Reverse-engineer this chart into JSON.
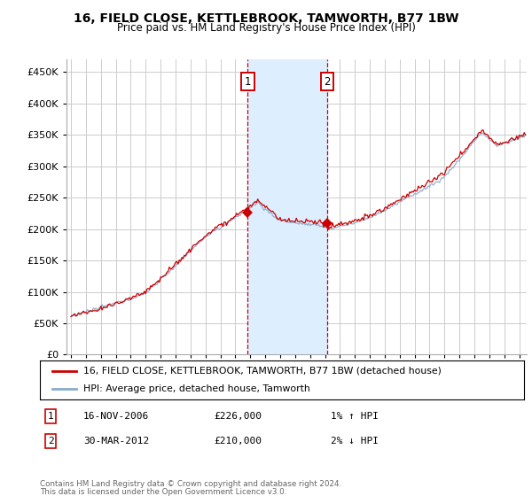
{
  "title1": "16, FIELD CLOSE, KETTLEBROOK, TAMWORTH, B77 1BW",
  "title2": "Price paid vs. HM Land Registry's House Price Index (HPI)",
  "legend_line1": "16, FIELD CLOSE, KETTLEBROOK, TAMWORTH, B77 1BW (detached house)",
  "legend_line2": "HPI: Average price, detached house, Tamworth",
  "annotation1_date": "16-NOV-2006",
  "annotation1_price": 226000,
  "annotation1_hpi_pct": "1%",
  "annotation1_hpi_dir": "↑",
  "annotation2_date": "30-MAR-2012",
  "annotation2_price": 210000,
  "annotation2_hpi_pct": "2%",
  "annotation2_hpi_dir": "↓",
  "footer1": "Contains HM Land Registry data © Crown copyright and database right 2024.",
  "footer2": "This data is licensed under the Open Government Licence v3.0.",
  "red_color": "#cc0000",
  "blue_color": "#88aacc",
  "shading_color": "#ddeeff",
  "grid_color": "#cccccc",
  "ylim": [
    0,
    470000
  ],
  "yticks": [
    0,
    50000,
    100000,
    150000,
    200000,
    250000,
    300000,
    350000,
    400000,
    450000
  ],
  "xlim_start": 1994.7,
  "xlim_end": 2025.5
}
